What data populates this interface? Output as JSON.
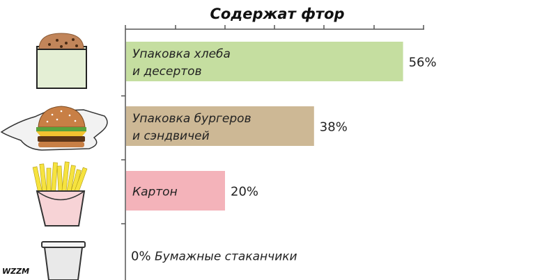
{
  "chart_data": {
    "type": "bar",
    "orientation": "horizontal",
    "title": "Содержат фтор",
    "categories": [
      [
        "Упаковка хлеба",
        "и десертов"
      ],
      [
        "Упаковка бургеров",
        "и сэндвичей"
      ],
      [
        "Картон"
      ],
      [
        "Бумажные стаканчики"
      ]
    ],
    "values": [
      56,
      38,
      20,
      0
    ],
    "value_labels": [
      "56%",
      "38%",
      "20%",
      "0%"
    ],
    "xlim": [
      0,
      80
    ],
    "unit": "%",
    "grid": false,
    "colors": [
      "#c5dea0",
      "#cdb895",
      "#f4b3ba",
      "#ffffff"
    ],
    "icons": [
      "cookie-bag-icon",
      "burger-wrapper-icon",
      "fries-box-icon",
      "paper-cup-icon"
    ]
  },
  "watermark": "WZZM"
}
